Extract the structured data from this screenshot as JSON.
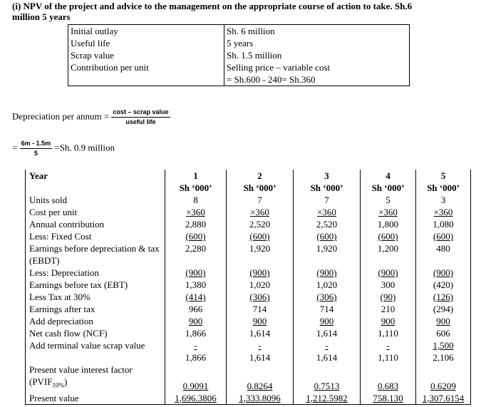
{
  "heading": "(i) NPV of the project and advice to the management on the appropriate course of action to take. Sh.6 million 5 years",
  "info": {
    "rows": [
      [
        "Initial outlay",
        "Sh. 6 million"
      ],
      [
        "Useful life",
        "5 years"
      ],
      [
        "Scrap value",
        "Sh. 1.5 million"
      ],
      [
        "Contribution per unit",
        "Selling price – variable cost"
      ]
    ],
    "note": "= Sh.600 - 240= Sh.360"
  },
  "depreciation": {
    "label": "Depreciation per annum =",
    "numerator": "cost – scrap value",
    "denominator": "useful life"
  },
  "calc": {
    "prefix": "=",
    "numerator": "6m - 1.5m",
    "denominator": "5",
    "result": "=Sh. 0.9 million"
  },
  "table": {
    "header_label": "Year",
    "columns": [
      {
        "year": "1",
        "unit": "Sh ‘000’"
      },
      {
        "year": "2",
        "unit": "Sh ‘000’"
      },
      {
        "year": "3",
        "unit": "Sh ‘000’"
      },
      {
        "year": "4",
        "unit": "Sh ‘000’"
      },
      {
        "year": "5",
        "unit": "Sh ‘000’"
      }
    ],
    "rows": [
      {
        "label": "Units sold",
        "values": [
          "8",
          "7",
          "7",
          "5",
          "3"
        ]
      },
      {
        "label": "Cost per unit",
        "values": [
          "×360",
          "×360",
          "×360",
          "×360",
          "×360"
        ],
        "underline": true
      },
      {
        "label": "Annual contribution",
        "values": [
          "2,880",
          "2,520",
          "2,520",
          "1,800",
          "1,080"
        ]
      },
      {
        "label": "Less: Fixed Cost",
        "values": [
          "(600)",
          "(600)",
          "(600)",
          "(600)",
          "(600)"
        ],
        "underline": true
      },
      {
        "label": "Earnings before depreciation & tax (EBDT)",
        "values": [
          "2,280",
          "1,920",
          "1,920",
          "1,200",
          "480"
        ]
      },
      {
        "label": "Less: Depreciation",
        "values": [
          "(900)",
          "(900)",
          "(900)",
          "(900)",
          "(900)"
        ],
        "underline": true
      },
      {
        "label": "Earnings before tax (EBT)",
        "values": [
          "1,380",
          "1,020",
          "1,020",
          "300",
          "(420)"
        ]
      },
      {
        "label": "Less Tax at 30%",
        "values": [
          "(414)",
          "(306)",
          "(306)",
          "(90)",
          "(126)"
        ],
        "underline": true
      },
      {
        "label": "Earnings after tax",
        "values": [
          "966",
          "714",
          "714",
          "210",
          "(294)"
        ]
      },
      {
        "label": "Add depreciation",
        "values": [
          "900",
          "900",
          "900",
          "900",
          "900"
        ],
        "underline": true
      },
      {
        "label": "Net cash flow (NCF)",
        "values": [
          "1,866",
          "1,614",
          "1,614",
          "1,110",
          "606"
        ]
      },
      {
        "label": "Add terminal value scrap value",
        "values": [
          "-",
          "-",
          "-",
          "-",
          "1,500"
        ],
        "underline": true,
        "totals": [
          "1,866",
          "1,614",
          "1,614",
          "1,110",
          "2,106"
        ]
      },
      {
        "label": "Present value interest factor (PVIF",
        "subscript": "10%",
        "label_end": ")",
        "values": [
          "0.9091",
          "0.8264",
          "0.7513",
          "0.683",
          "0.6209"
        ],
        "underline": true
      },
      {
        "label": "Present value",
        "values": [
          "1,696.3806",
          "1,333.8096",
          "1,212.5982",
          "758.130",
          "1,307.6154"
        ],
        "underline": true
      }
    ]
  }
}
